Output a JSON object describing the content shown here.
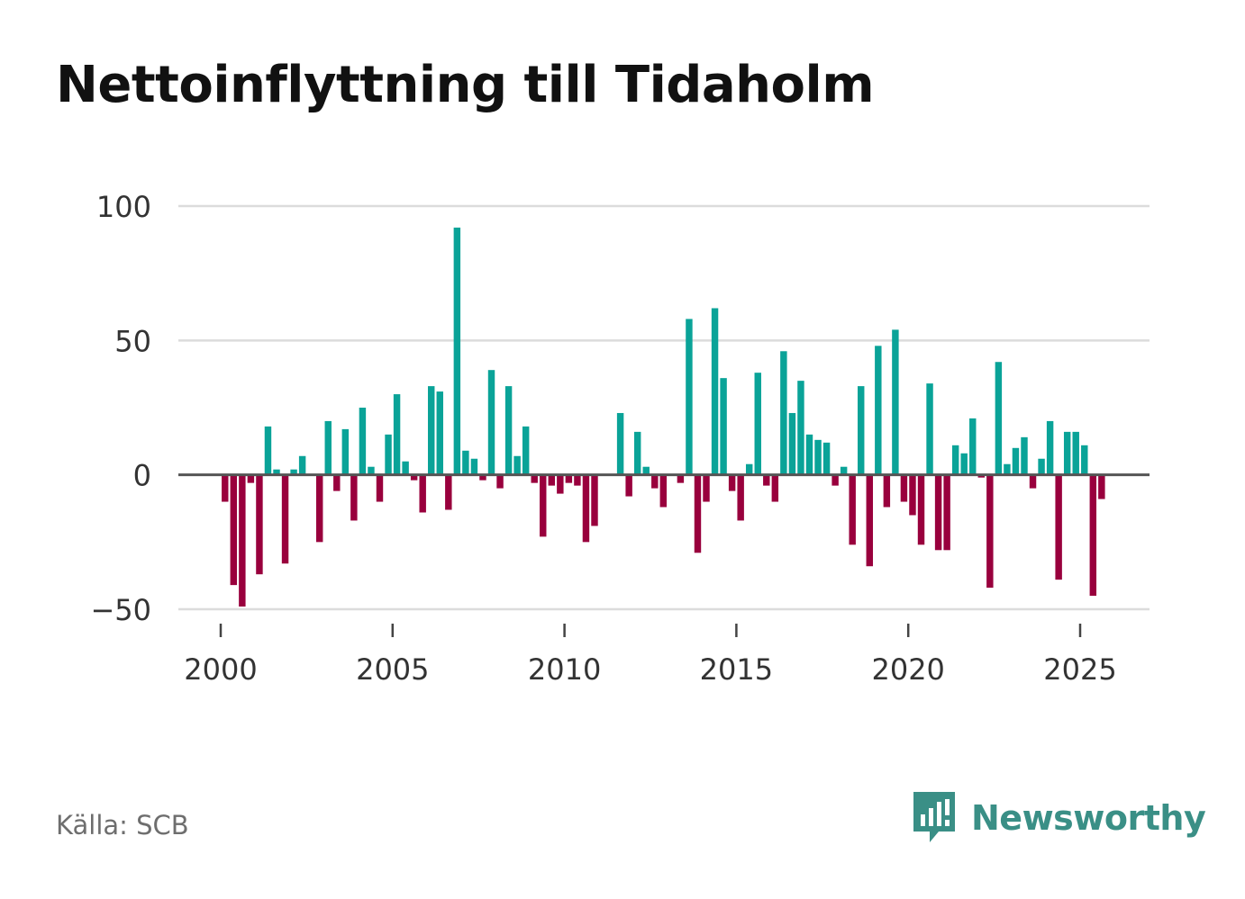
{
  "title": "Nettoinflyttning till Tidaholm",
  "source": "Källa: SCB",
  "brand": "Newsworthy",
  "colors": {
    "positive": "#0aa398",
    "negative": "#99003d",
    "grid": "#dcdcdc",
    "zero": "#555555",
    "brand": "#3a8f86"
  },
  "chart_data": {
    "type": "bar",
    "title": "Nettoinflyttning till Tidaholm",
    "xlabel": "",
    "ylabel": "",
    "x_unit": "quarter",
    "x_start": 2000.0,
    "x_step": 0.25,
    "x_ticks": [
      2000,
      2005,
      2010,
      2015,
      2020,
      2025
    ],
    "x_tick_labels": [
      "2000",
      "2005",
      "2010",
      "2015",
      "2020",
      "2025"
    ],
    "ylim": [
      -50,
      100
    ],
    "y_ticks": [
      -50,
      0,
      50,
      100
    ],
    "y_tick_labels": [
      "−50",
      "0",
      "50",
      "100"
    ],
    "grid": true,
    "values": [
      -10,
      -41,
      -49,
      -3,
      -37,
      18,
      2,
      -33,
      2,
      7,
      0,
      -25,
      20,
      -6,
      17,
      -17,
      25,
      3,
      -10,
      15,
      30,
      5,
      -2,
      -14,
      33,
      31,
      -13,
      92,
      9,
      6,
      -2,
      39,
      -5,
      33,
      7,
      18,
      -3,
      -23,
      -4,
      -7,
      -3,
      -4,
      -25,
      -19,
      0,
      0,
      23,
      -8,
      16,
      3,
      -5,
      -12,
      0,
      -3,
      58,
      -29,
      -10,
      62,
      36,
      -6,
      -17,
      4,
      38,
      -4,
      -10,
      46,
      23,
      35,
      15,
      13,
      12,
      -4,
      3,
      -26,
      33,
      -34,
      48,
      -12,
      54,
      -10,
      -15,
      -26,
      34,
      -28,
      -28,
      11,
      8,
      21,
      -1,
      -42,
      42,
      4,
      10,
      14,
      -5,
      6,
      20,
      -39,
      16,
      16,
      11,
      -45,
      -9
    ]
  }
}
